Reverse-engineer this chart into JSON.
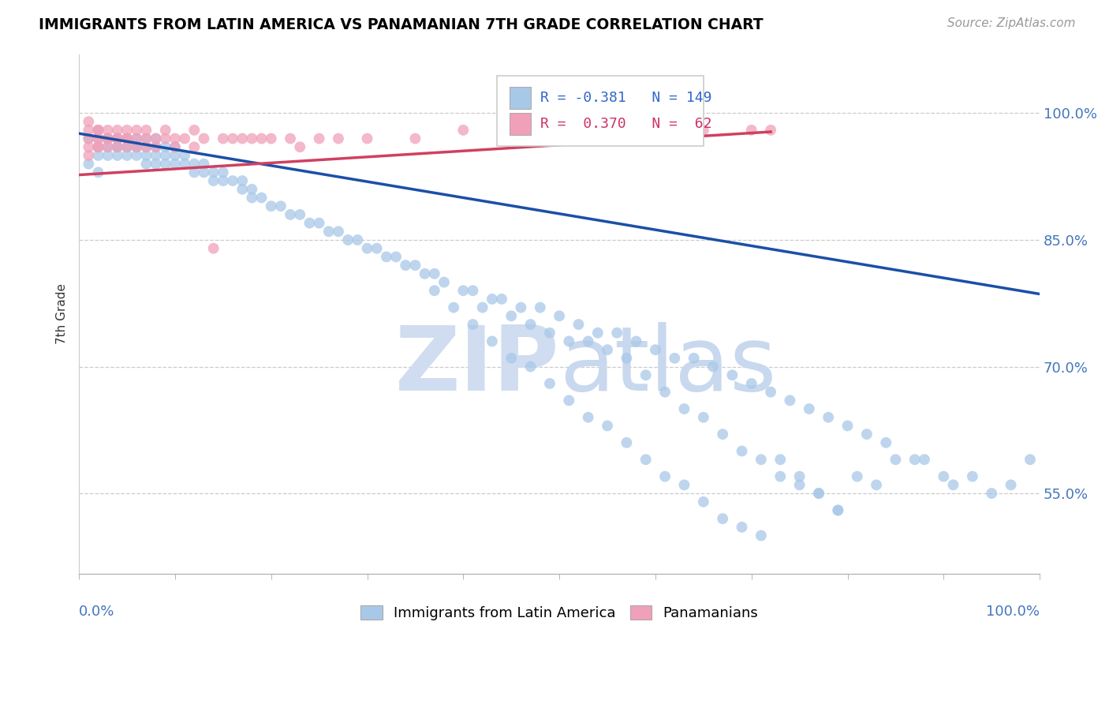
{
  "title": "IMMIGRANTS FROM LATIN AMERICA VS PANAMANIAN 7TH GRADE CORRELATION CHART",
  "source": "Source: ZipAtlas.com",
  "ylabel": "7th Grade",
  "legend_blue_r": "R = -0.381",
  "legend_blue_n": "N = 149",
  "legend_pink_r": "R =  0.370",
  "legend_pink_n": "N =  62",
  "ytick_labels": [
    "55.0%",
    "70.0%",
    "85.0%",
    "100.0%"
  ],
  "ytick_values": [
    0.55,
    0.7,
    0.85,
    1.0
  ],
  "xlim": [
    0.0,
    1.0
  ],
  "ylim": [
    0.455,
    1.07
  ],
  "blue_color": "#A8C8E8",
  "blue_line_color": "#1B4FA8",
  "pink_color": "#F0A0B8",
  "pink_line_color": "#D04060",
  "blue_scatter_x": [
    0.01,
    0.01,
    0.02,
    0.02,
    0.02,
    0.02,
    0.03,
    0.03,
    0.03,
    0.03,
    0.04,
    0.04,
    0.04,
    0.04,
    0.04,
    0.05,
    0.05,
    0.05,
    0.05,
    0.05,
    0.06,
    0.06,
    0.06,
    0.06,
    0.07,
    0.07,
    0.07,
    0.07,
    0.08,
    0.08,
    0.08,
    0.08,
    0.09,
    0.09,
    0.09,
    0.1,
    0.1,
    0.1,
    0.11,
    0.11,
    0.12,
    0.12,
    0.13,
    0.13,
    0.14,
    0.14,
    0.15,
    0.15,
    0.16,
    0.17,
    0.17,
    0.18,
    0.18,
    0.19,
    0.2,
    0.21,
    0.22,
    0.23,
    0.24,
    0.25,
    0.26,
    0.27,
    0.28,
    0.29,
    0.3,
    0.31,
    0.32,
    0.33,
    0.34,
    0.35,
    0.36,
    0.37,
    0.38,
    0.4,
    0.41,
    0.43,
    0.44,
    0.46,
    0.48,
    0.5,
    0.52,
    0.54,
    0.56,
    0.58,
    0.6,
    0.62,
    0.64,
    0.66,
    0.68,
    0.7,
    0.72,
    0.74,
    0.76,
    0.78,
    0.8,
    0.82,
    0.84,
    0.87,
    0.9,
    0.53,
    0.55,
    0.57,
    0.59,
    0.61,
    0.63,
    0.65,
    0.67,
    0.69,
    0.71,
    0.73,
    0.75,
    0.77,
    0.79,
    0.81,
    0.83,
    0.85,
    0.88,
    0.91,
    0.93,
    0.95,
    0.97,
    0.99,
    0.42,
    0.45,
    0.47,
    0.49,
    0.51,
    0.37,
    0.39,
    0.41,
    0.43,
    0.45,
    0.47,
    0.49,
    0.51,
    0.53,
    0.55,
    0.57,
    0.59,
    0.61,
    0.63,
    0.65,
    0.67,
    0.69,
    0.71,
    0.73,
    0.75,
    0.77,
    0.79
  ],
  "blue_scatter_y": [
    0.97,
    0.94,
    0.98,
    0.96,
    0.95,
    0.93,
    0.97,
    0.96,
    0.97,
    0.95,
    0.97,
    0.96,
    0.97,
    0.95,
    0.96,
    0.97,
    0.96,
    0.95,
    0.97,
    0.96,
    0.96,
    0.97,
    0.95,
    0.96,
    0.95,
    0.96,
    0.97,
    0.94,
    0.96,
    0.95,
    0.97,
    0.94,
    0.95,
    0.96,
    0.94,
    0.95,
    0.94,
    0.96,
    0.94,
    0.95,
    0.94,
    0.93,
    0.93,
    0.94,
    0.93,
    0.92,
    0.92,
    0.93,
    0.92,
    0.92,
    0.91,
    0.91,
    0.9,
    0.9,
    0.89,
    0.89,
    0.88,
    0.88,
    0.87,
    0.87,
    0.86,
    0.86,
    0.85,
    0.85,
    0.84,
    0.84,
    0.83,
    0.83,
    0.82,
    0.82,
    0.81,
    0.81,
    0.8,
    0.79,
    0.79,
    0.78,
    0.78,
    0.77,
    0.77,
    0.76,
    0.75,
    0.74,
    0.74,
    0.73,
    0.72,
    0.71,
    0.71,
    0.7,
    0.69,
    0.68,
    0.67,
    0.66,
    0.65,
    0.64,
    0.63,
    0.62,
    0.61,
    0.59,
    0.57,
    0.73,
    0.72,
    0.71,
    0.69,
    0.67,
    0.65,
    0.64,
    0.62,
    0.6,
    0.59,
    0.57,
    0.56,
    0.55,
    0.53,
    0.57,
    0.56,
    0.59,
    0.59,
    0.56,
    0.57,
    0.55,
    0.56,
    0.59,
    0.77,
    0.76,
    0.75,
    0.74,
    0.73,
    0.79,
    0.77,
    0.75,
    0.73,
    0.71,
    0.7,
    0.68,
    0.66,
    0.64,
    0.63,
    0.61,
    0.59,
    0.57,
    0.56,
    0.54,
    0.52,
    0.51,
    0.5,
    0.59,
    0.57,
    0.55,
    0.53
  ],
  "pink_scatter_x": [
    0.01,
    0.01,
    0.01,
    0.01,
    0.01,
    0.02,
    0.02,
    0.02,
    0.02,
    0.02,
    0.02,
    0.03,
    0.03,
    0.03,
    0.03,
    0.04,
    0.04,
    0.04,
    0.04,
    0.05,
    0.05,
    0.05,
    0.05,
    0.06,
    0.06,
    0.06,
    0.07,
    0.07,
    0.07,
    0.08,
    0.08,
    0.09,
    0.09,
    0.1,
    0.1,
    0.11,
    0.12,
    0.12,
    0.13,
    0.14,
    0.15,
    0.16,
    0.17,
    0.18,
    0.19,
    0.2,
    0.22,
    0.23,
    0.25,
    0.27,
    0.3,
    0.35,
    0.4,
    0.47,
    0.5,
    0.52,
    0.55,
    0.58,
    0.6,
    0.65,
    0.7,
    0.72
  ],
  "pink_scatter_y": [
    0.95,
    0.96,
    0.97,
    0.98,
    0.99,
    0.96,
    0.97,
    0.98,
    0.96,
    0.97,
    0.98,
    0.97,
    0.98,
    0.96,
    0.97,
    0.97,
    0.98,
    0.96,
    0.97,
    0.97,
    0.98,
    0.96,
    0.97,
    0.97,
    0.96,
    0.98,
    0.97,
    0.96,
    0.98,
    0.97,
    0.96,
    0.97,
    0.98,
    0.96,
    0.97,
    0.97,
    0.96,
    0.98,
    0.97,
    0.84,
    0.97,
    0.97,
    0.97,
    0.97,
    0.97,
    0.97,
    0.97,
    0.96,
    0.97,
    0.97,
    0.97,
    0.97,
    0.98,
    0.98,
    0.98,
    0.97,
    0.97,
    0.97,
    0.97,
    0.98,
    0.98,
    0.98
  ],
  "blue_trend_x": [
    0.0,
    1.0
  ],
  "blue_trend_y": [
    0.976,
    0.786
  ],
  "pink_trend_x": [
    0.0,
    0.72
  ],
  "pink_trend_y": [
    0.927,
    0.978
  ]
}
